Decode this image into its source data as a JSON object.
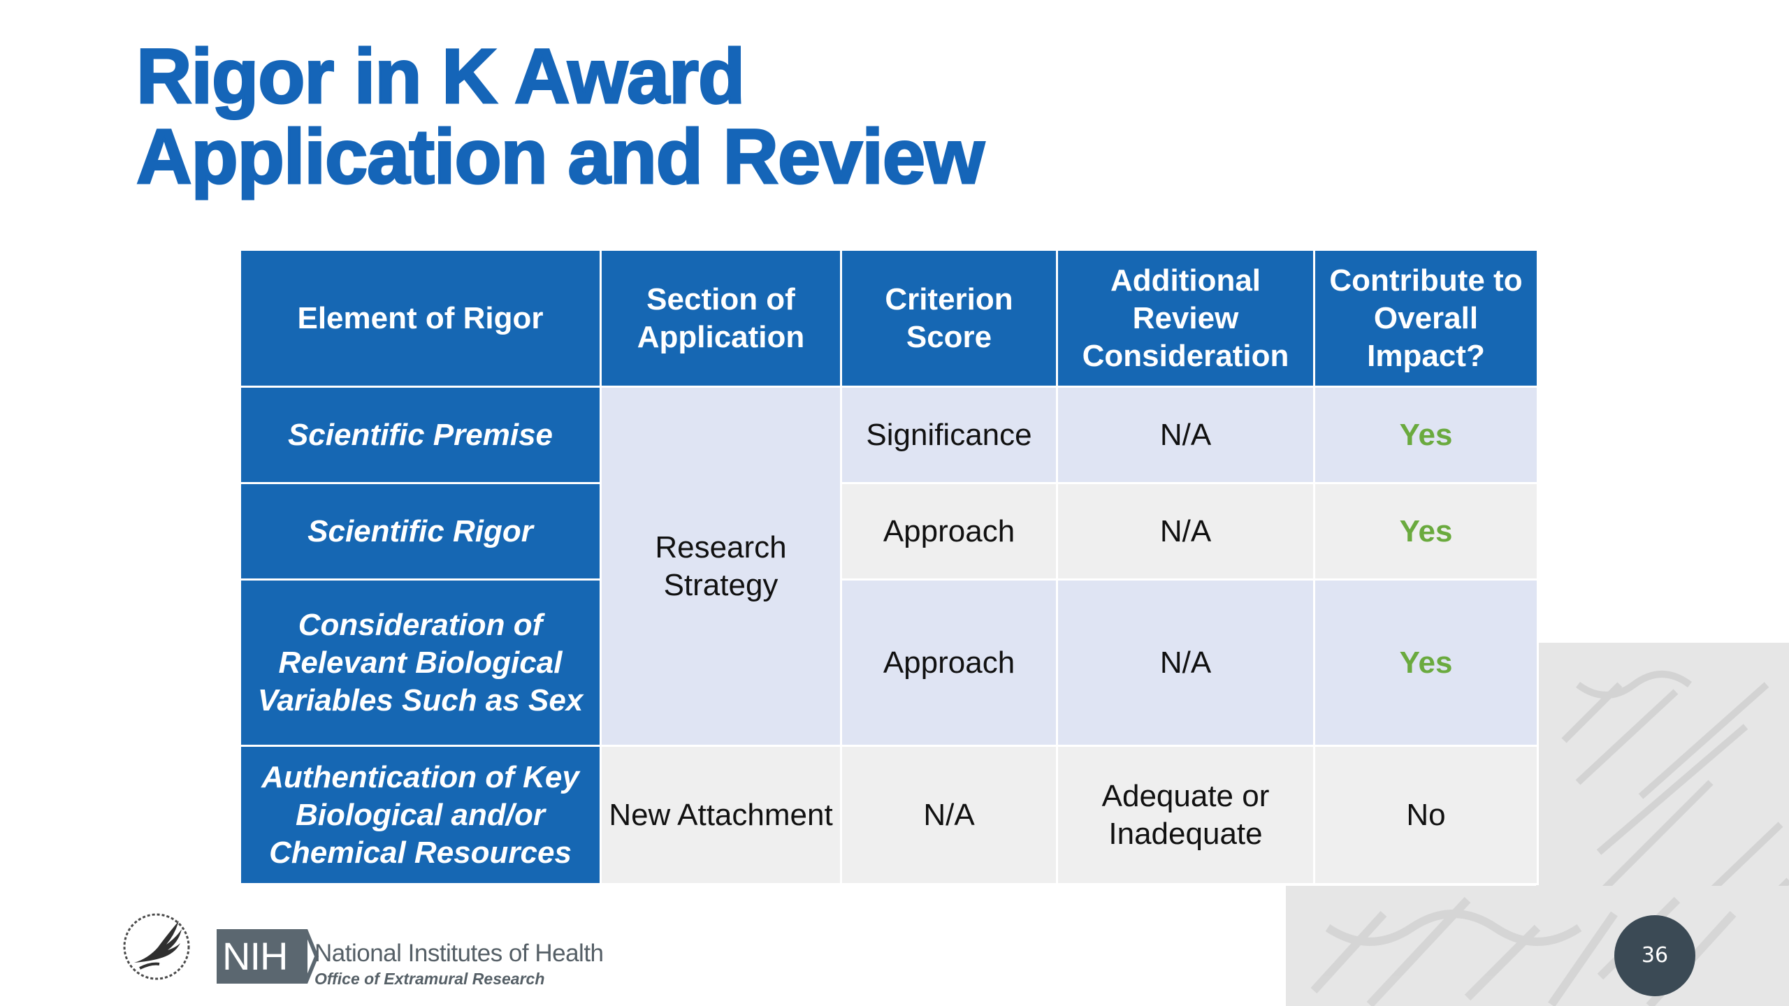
{
  "slide": {
    "title_line1": "Rigor in K Award",
    "title_line2": "Application and Review",
    "page_number": "36"
  },
  "table": {
    "headers": [
      "Element of Rigor",
      "Section of Application",
      "Criterion Score",
      "Additional Review Consideration",
      "Contribute to Overall Impact?"
    ],
    "rows": [
      {
        "element": "Scientific Premise",
        "criterion": "Significance",
        "additional": "N/A",
        "impact": "Yes"
      },
      {
        "element": "Scientific Rigor",
        "criterion": "Approach",
        "additional": "N/A",
        "impact": "Yes"
      },
      {
        "element": "Consideration of Relevant Biological Variables Such as Sex",
        "criterion": "Approach",
        "additional": "N/A",
        "impact": "Yes"
      },
      {
        "element": "Authentication of Key Biological and/or Chemical Resources",
        "section": "New Attachment",
        "criterion": "N/A",
        "additional": "Adequate or Inadequate",
        "impact": "No"
      }
    ],
    "merged_section": "Research Strategy"
  },
  "footer": {
    "nih_abbrev": "NIH",
    "org_name": "National Institutes of Health",
    "office": "Office of Extramural Research"
  },
  "colors": {
    "title": "#1565b8",
    "header_bg": "#1667b3",
    "band_light_blue": "#dfe4f3",
    "band_light_gray": "#efefef",
    "yes_green": "#6aaa3e",
    "badge": "#3b4a55"
  }
}
